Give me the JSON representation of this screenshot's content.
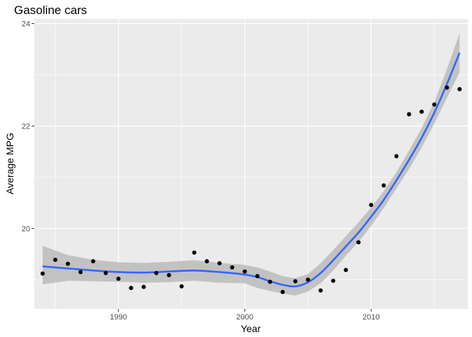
{
  "chart_data": {
    "type": "scatter",
    "title": "Gasoline cars",
    "xlabel": "Year",
    "ylabel": "Average MPG",
    "xlim": [
      1983.35,
      2017.65
    ],
    "ylim": [
      18.43,
      24.09
    ],
    "x_ticks": [
      1990,
      2000,
      2010
    ],
    "x_minor_ticks": [
      1985,
      1995,
      2005,
      2015
    ],
    "y_ticks": [
      20,
      22,
      24
    ],
    "y_minor_ticks": [
      19,
      21,
      23
    ],
    "grid": true,
    "series": [
      {
        "type": "scatter",
        "x": [
          1984,
          1985,
          1986,
          1987,
          1988,
          1989,
          1990,
          1991,
          1992,
          1993,
          1994,
          1995,
          1996,
          1997,
          1998,
          1999,
          2000,
          2001,
          2002,
          2003,
          2004,
          2005,
          2006,
          2007,
          2008,
          2009,
          2010,
          2011,
          2012,
          2013,
          2014,
          2015,
          2016,
          2017
        ],
        "y": [
          19.12,
          19.39,
          19.31,
          19.15,
          19.36,
          19.13,
          19.02,
          18.84,
          18.86,
          19.13,
          19.09,
          18.87,
          19.53,
          19.36,
          19.32,
          19.24,
          19.16,
          19.07,
          18.96,
          18.76,
          18.97,
          19.0,
          18.79,
          18.98,
          19.19,
          19.73,
          20.46,
          20.84,
          21.41,
          22.23,
          22.28,
          22.42,
          22.75,
          22.72
        ],
        "color": "#000000"
      },
      {
        "type": "line",
        "x": [
          1984,
          1986,
          1988,
          1990,
          1992,
          1994,
          1996,
          1998,
          2000,
          2001,
          2002,
          2003,
          2004,
          2005,
          2006,
          2007,
          2008,
          2009,
          2010,
          2011,
          2012,
          2013,
          2014,
          2015,
          2016,
          2017
        ],
        "y": [
          19.26,
          19.22,
          19.18,
          19.15,
          19.14,
          19.16,
          19.18,
          19.15,
          19.1,
          19.05,
          18.97,
          18.9,
          18.87,
          18.95,
          19.13,
          19.38,
          19.65,
          19.92,
          20.23,
          20.56,
          20.94,
          21.34,
          21.77,
          22.26,
          22.82,
          23.43
        ],
        "lower": [
          18.91,
          18.98,
          18.97,
          18.96,
          18.94,
          18.95,
          18.98,
          18.94,
          18.93,
          18.84,
          18.78,
          18.73,
          18.69,
          18.77,
          18.93,
          19.18,
          19.47,
          19.74,
          20.05,
          20.4,
          20.78,
          21.16,
          21.58,
          22.05,
          22.55,
          23.05
        ],
        "upper": [
          19.66,
          19.48,
          19.39,
          19.34,
          19.33,
          19.35,
          19.38,
          19.33,
          19.29,
          19.24,
          19.16,
          19.07,
          19.03,
          19.11,
          19.32,
          19.58,
          19.85,
          20.12,
          20.41,
          20.73,
          21.1,
          21.52,
          21.96,
          22.47,
          23.11,
          23.81
        ],
        "color": "#3366FF",
        "band_color": "#bebebe"
      }
    ]
  }
}
